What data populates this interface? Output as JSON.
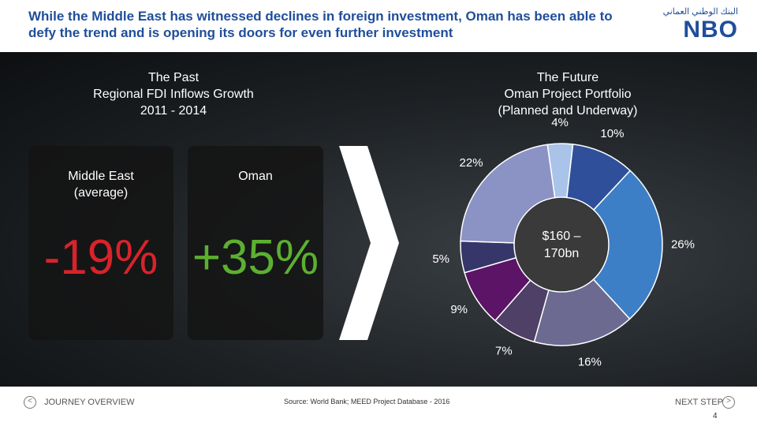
{
  "header": {
    "title": "While the Middle East has witnessed declines in foreign investment, Oman has been able to defy the trend and is opening its doors for even further investment",
    "logo": "NBO",
    "logo_arabic": "البنك الوطني العماني"
  },
  "past": {
    "title": "The Past",
    "subtitle": "Regional FDI Inflows Growth",
    "period": "2011 - 2014"
  },
  "panels": [
    {
      "label": "Middle East",
      "sublabel": "(average)",
      "value": "-19%"
    },
    {
      "label": "Oman",
      "value": "+35%"
    }
  ],
  "future": {
    "title": "The Future",
    "subtitle": "Oman Project Portfolio",
    "note": "(Planned and Underway)"
  },
  "chart_data": {
    "type": "donut",
    "center_label": [
      "$160 –",
      "170bn"
    ],
    "values": [
      4,
      10,
      26,
      16,
      7,
      9,
      5,
      22
    ],
    "value_labels": [
      "4%",
      "10%",
      "26%",
      "16%",
      "7%",
      "9%",
      "5%",
      "22%"
    ],
    "colors": [
      "#a9c4e8",
      "#2f4f9a",
      "#3d7fc6",
      "#6c6a90",
      "#4e4066",
      "#5b1466",
      "#36366a",
      "#8b92c4"
    ]
  },
  "footer": {
    "prev": "JOURNEY OVERVIEW",
    "next": "NEXT STEP",
    "source": "Source:  World Bank; MEED Project Database - 2016",
    "page": "4"
  }
}
